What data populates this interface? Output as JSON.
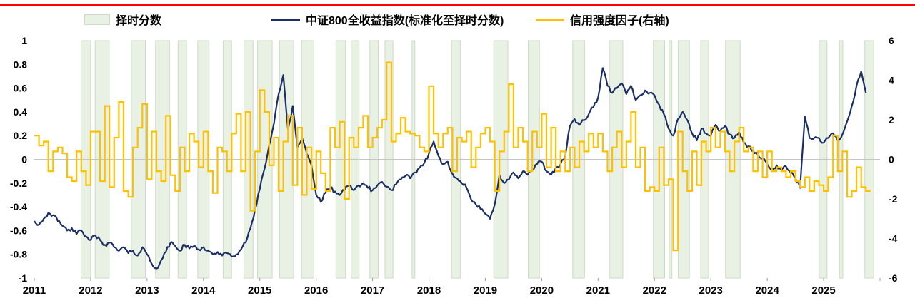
{
  "page": {
    "background": "#ffffff",
    "top_rule_color": "#ff0000"
  },
  "colors": {
    "index_line": "#1b2f66",
    "credit_line": "#ffc000",
    "band_fill": "#e9f1e4",
    "band_border": "#ccdcc2",
    "zero_line": "#c6c6c6",
    "axis_text": "#000000"
  },
  "legend": {
    "items": [
      {
        "label": "择时分数",
        "swatch": "band"
      },
      {
        "label": "中证800全收益指数(标准化至择时分数)",
        "swatch": "line-navy"
      },
      {
        "label": "信用强度因子(右轴)",
        "swatch": "line-gold"
      }
    ]
  },
  "chart_data": {
    "type": "line",
    "title": "",
    "legend_position": "top",
    "x_range": [
      2011,
      2026
    ],
    "x_ticks": [
      2011,
      2012,
      2013,
      2014,
      2015,
      2016,
      2017,
      2018,
      2019,
      2020,
      2021,
      2022,
      2023,
      2024,
      2025
    ],
    "left_axis": {
      "label": "",
      "range": [
        -1,
        1
      ],
      "ticks": [
        1,
        0.8,
        0.6,
        0.4,
        0.2,
        0,
        -0.2,
        -0.4,
        -0.6,
        -0.8,
        -1
      ]
    },
    "right_axis": {
      "label": "",
      "range": [
        -6,
        6
      ],
      "ticks": [
        6,
        4,
        2,
        0,
        -2,
        -4,
        -6
      ]
    },
    "bands": [
      [
        2011.83,
        2012.0
      ],
      [
        2012.08,
        2012.33
      ],
      [
        2012.72,
        2012.97
      ],
      [
        2013.15,
        2013.4
      ],
      [
        2013.55,
        2013.7
      ],
      [
        2013.9,
        2014.1
      ],
      [
        2014.35,
        2014.5
      ],
      [
        2014.72,
        2014.88
      ],
      [
        2014.96,
        2015.22
      ],
      [
        2015.35,
        2015.6
      ],
      [
        2015.74,
        2015.96
      ],
      [
        2016.35,
        2016.52
      ],
      [
        2016.62,
        2016.76
      ],
      [
        2016.95,
        2017.1
      ],
      [
        2017.22,
        2017.36
      ],
      [
        2017.7,
        2017.75
      ],
      [
        2018.4,
        2018.56
      ],
      [
        2019.15,
        2019.4
      ],
      [
        2019.76,
        2019.96
      ],
      [
        2020.55,
        2020.76
      ],
      [
        2021.2,
        2021.44
      ],
      [
        2021.98,
        2022.18
      ],
      [
        2022.26,
        2022.31
      ],
      [
        2022.42,
        2022.62
      ],
      [
        2022.82,
        2022.96
      ],
      [
        2023.26,
        2023.52
      ],
      [
        2024.92,
        2025.06
      ],
      [
        2025.28,
        2025.34
      ],
      [
        2025.73,
        2025.89
      ]
    ],
    "series": [
      {
        "name": "中证800全收益指数(标准化至择时分数)",
        "axis": "left",
        "style": "line",
        "color": "#1b2f66",
        "start_year": 2011,
        "points_per_year": 12,
        "values": [
          -0.52,
          -0.55,
          -0.5,
          -0.45,
          -0.47,
          -0.52,
          -0.56,
          -0.6,
          -0.58,
          -0.63,
          -0.6,
          -0.65,
          -0.68,
          -0.64,
          -0.68,
          -0.72,
          -0.7,
          -0.74,
          -0.77,
          -0.74,
          -0.79,
          -0.77,
          -0.81,
          -0.74,
          -0.8,
          -0.88,
          -0.92,
          -0.85,
          -0.78,
          -0.7,
          -0.73,
          -0.77,
          -0.72,
          -0.75,
          -0.73,
          -0.76,
          -0.74,
          -0.77,
          -0.8,
          -0.78,
          -0.81,
          -0.79,
          -0.82,
          -0.8,
          -0.76,
          -0.7,
          -0.58,
          -0.42,
          -0.25,
          -0.08,
          0.12,
          0.3,
          0.55,
          0.71,
          0.25,
          0.45,
          0.1,
          0.18,
          0.05,
          -0.05,
          -0.3,
          -0.36,
          -0.28,
          -0.24,
          -0.27,
          -0.3,
          -0.26,
          -0.22,
          -0.26,
          -0.22,
          -0.2,
          -0.24,
          -0.26,
          -0.22,
          -0.19,
          -0.23,
          -0.26,
          -0.21,
          -0.17,
          -0.14,
          -0.16,
          -0.11,
          -0.07,
          -0.03,
          0.05,
          0.15,
          0.03,
          -0.04,
          -0.02,
          -0.12,
          -0.16,
          -0.2,
          -0.24,
          -0.34,
          -0.38,
          -0.42,
          -0.46,
          -0.5,
          -0.38,
          -0.13,
          -0.2,
          -0.17,
          -0.11,
          -0.16,
          -0.1,
          -0.13,
          -0.09,
          -0.04,
          -0.02,
          -0.1,
          -0.13,
          -0.07,
          -0.04,
          0.03,
          0.28,
          0.34,
          0.29,
          0.33,
          0.38,
          0.44,
          0.52,
          0.77,
          0.62,
          0.56,
          0.6,
          0.64,
          0.55,
          0.62,
          0.5,
          0.54,
          0.58,
          0.56,
          0.54,
          0.46,
          0.38,
          0.26,
          0.2,
          0.34,
          0.4,
          0.33,
          0.22,
          0.16,
          0.26,
          0.22,
          0.2,
          0.29,
          0.24,
          0.28,
          0.21,
          0.18,
          0.23,
          0.14,
          0.11,
          0.07,
          0.04,
          0.0,
          -0.04,
          -0.1,
          -0.05,
          -0.09,
          -0.06,
          -0.11,
          -0.16,
          -0.24,
          0.36,
          0.18,
          0.18,
          0.18,
          0.14,
          0.18,
          0.22,
          0.16,
          0.21,
          0.32,
          0.45,
          0.62,
          0.74,
          0.56
        ]
      },
      {
        "name": "信用强度因子(右轴)",
        "axis": "right",
        "style": "step",
        "color": "#ffc000",
        "start_year": 2011,
        "points_per_year": 12,
        "values": [
          1.2,
          0.7,
          0.9,
          -0.6,
          0.4,
          0.6,
          0.3,
          -0.9,
          -1.1,
          0.4,
          -0.6,
          -1.3,
          1.4,
          1.4,
          -1.1,
          2.7,
          -1.4,
          1.1,
          2.9,
          -1.6,
          -1.9,
          0.6,
          1.6,
          2.8,
          -1.0,
          1.4,
          -0.6,
          -1.1,
          2.2,
          -0.8,
          -1.6,
          0.6,
          -0.6,
          1.3,
          0.9,
          -0.4,
          1.4,
          -0.6,
          -1.7,
          0.6,
          0.4,
          -0.6,
          1.3,
          2.3,
          -0.6,
          2.4,
          -2.6,
          0.4,
          3.5,
          2.4,
          -0.3,
          1.1,
          -1.6,
          0.9,
          2.2,
          -1.3,
          1.6,
          -1.8,
          0.6,
          -1.5,
          0.4,
          -0.7,
          -1.6,
          1.6,
          0.6,
          1.9,
          -2.0,
          1.1,
          0.6,
          1.6,
          2.2,
          0.6,
          1.1,
          1.6,
          2.0,
          4.9,
          0.9,
          1.3,
          2.1,
          1.4,
          1.3,
          1.2,
          0.6,
          0.4,
          3.7,
          1.3,
          0.6,
          1.3,
          1.6,
          -0.6,
          1.1,
          0.9,
          1.4,
          -0.4,
          0.6,
          1.3,
          1.6,
          0.9,
          -1.6,
          0.4,
          1.4,
          3.8,
          0.6,
          1.6,
          0.9,
          -0.6,
          1.4,
          0.6,
          2.3,
          -0.4,
          1.6,
          -0.6,
          0.4,
          -0.6,
          0.6,
          -0.4,
          0.9,
          0.4,
          1.3,
          0.6,
          1.3,
          0.4,
          -0.6,
          0.6,
          1.4,
          -0.4,
          0.9,
          2.4,
          -0.4,
          0.6,
          -1.6,
          -1.4,
          -1.6,
          0.6,
          -1.3,
          -1.0,
          -4.6,
          1.4,
          -0.6,
          -1.6,
          0.4,
          -1.3,
          0.9,
          0.4,
          1.6,
          0.6,
          1.4,
          0.4,
          -0.6,
          0.9,
          1.6,
          0.4,
          0.6,
          -0.6,
          0.4,
          -0.9,
          0.4,
          -0.6,
          -0.4,
          -0.6,
          -0.9,
          -0.6,
          -1.1,
          -1.4,
          -0.9,
          -1.6,
          -1.1,
          -1.3,
          -1.6,
          -0.9,
          1.2,
          -0.6,
          0.4,
          -1.9,
          -1.6,
          -0.4,
          -1.4,
          -1.6
        ]
      }
    ]
  }
}
